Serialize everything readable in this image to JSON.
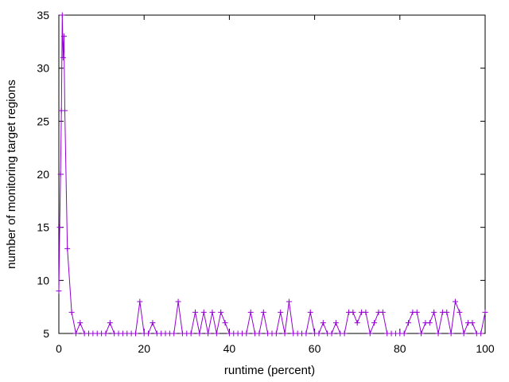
{
  "chart_data": {
    "type": "line",
    "xlabel": "runtime (percent)",
    "ylabel": "number of monitoring target regions",
    "xlim": [
      0,
      100
    ],
    "ylim": [
      5,
      35
    ],
    "xticks": [
      0,
      20,
      40,
      60,
      80,
      100
    ],
    "yticks": [
      5,
      10,
      15,
      20,
      25,
      30,
      35
    ],
    "xtick_labels": [
      "0",
      "20",
      "40",
      "60",
      "80",
      "100"
    ],
    "ytick_labels": [
      "5",
      "10",
      "15",
      "20",
      "25",
      "30",
      "35"
    ],
    "grid": false,
    "marker": "plus",
    "series": [
      {
        "color": "#9400d3",
        "x": [
          0,
          0.2,
          0.4,
          0.6,
          0.8,
          1,
          1.2,
          1.4,
          2,
          3,
          4,
          5,
          6,
          7,
          8,
          9,
          10,
          11,
          12,
          13,
          14,
          15,
          16,
          17,
          18,
          19,
          20,
          21,
          22,
          23,
          24,
          25,
          26,
          27,
          28,
          29,
          30,
          31,
          32,
          33,
          34,
          35,
          36,
          37,
          38,
          39,
          40,
          41,
          42,
          43,
          44,
          45,
          46,
          47,
          48,
          49,
          50,
          51,
          52,
          53,
          54,
          55,
          56,
          57,
          58,
          59,
          60,
          61,
          62,
          63,
          64,
          65,
          66,
          67,
          68,
          69,
          70,
          71,
          72,
          73,
          74,
          75,
          76,
          77,
          78,
          79,
          80,
          81,
          82,
          83,
          84,
          85,
          86,
          87,
          88,
          89,
          90,
          91,
          92,
          93,
          94,
          95,
          96,
          97,
          98,
          99,
          100
        ],
        "y": [
          9,
          15,
          20,
          26,
          35,
          31,
          33,
          26,
          13,
          7,
          5,
          6,
          5,
          5,
          5,
          5,
          5,
          5,
          6,
          5,
          5,
          5,
          5,
          5,
          5,
          8,
          5,
          5,
          6,
          5,
          5,
          5,
          5,
          5,
          8,
          5,
          5,
          5,
          7,
          5,
          7,
          5,
          7,
          5,
          7,
          6,
          5,
          5,
          5,
          5,
          5,
          7,
          5,
          5,
          7,
          5,
          5,
          5,
          7,
          5,
          8,
          5,
          5,
          5,
          5,
          7,
          5,
          5,
          6,
          5,
          5,
          6,
          5,
          5,
          7,
          7,
          6,
          7,
          7,
          5,
          6,
          7,
          7,
          5,
          5,
          5,
          5,
          5,
          6,
          7,
          7,
          5,
          6,
          6,
          7,
          5,
          7,
          7,
          5,
          8,
          7,
          5,
          6,
          6,
          5,
          5,
          7
        ]
      }
    ]
  }
}
